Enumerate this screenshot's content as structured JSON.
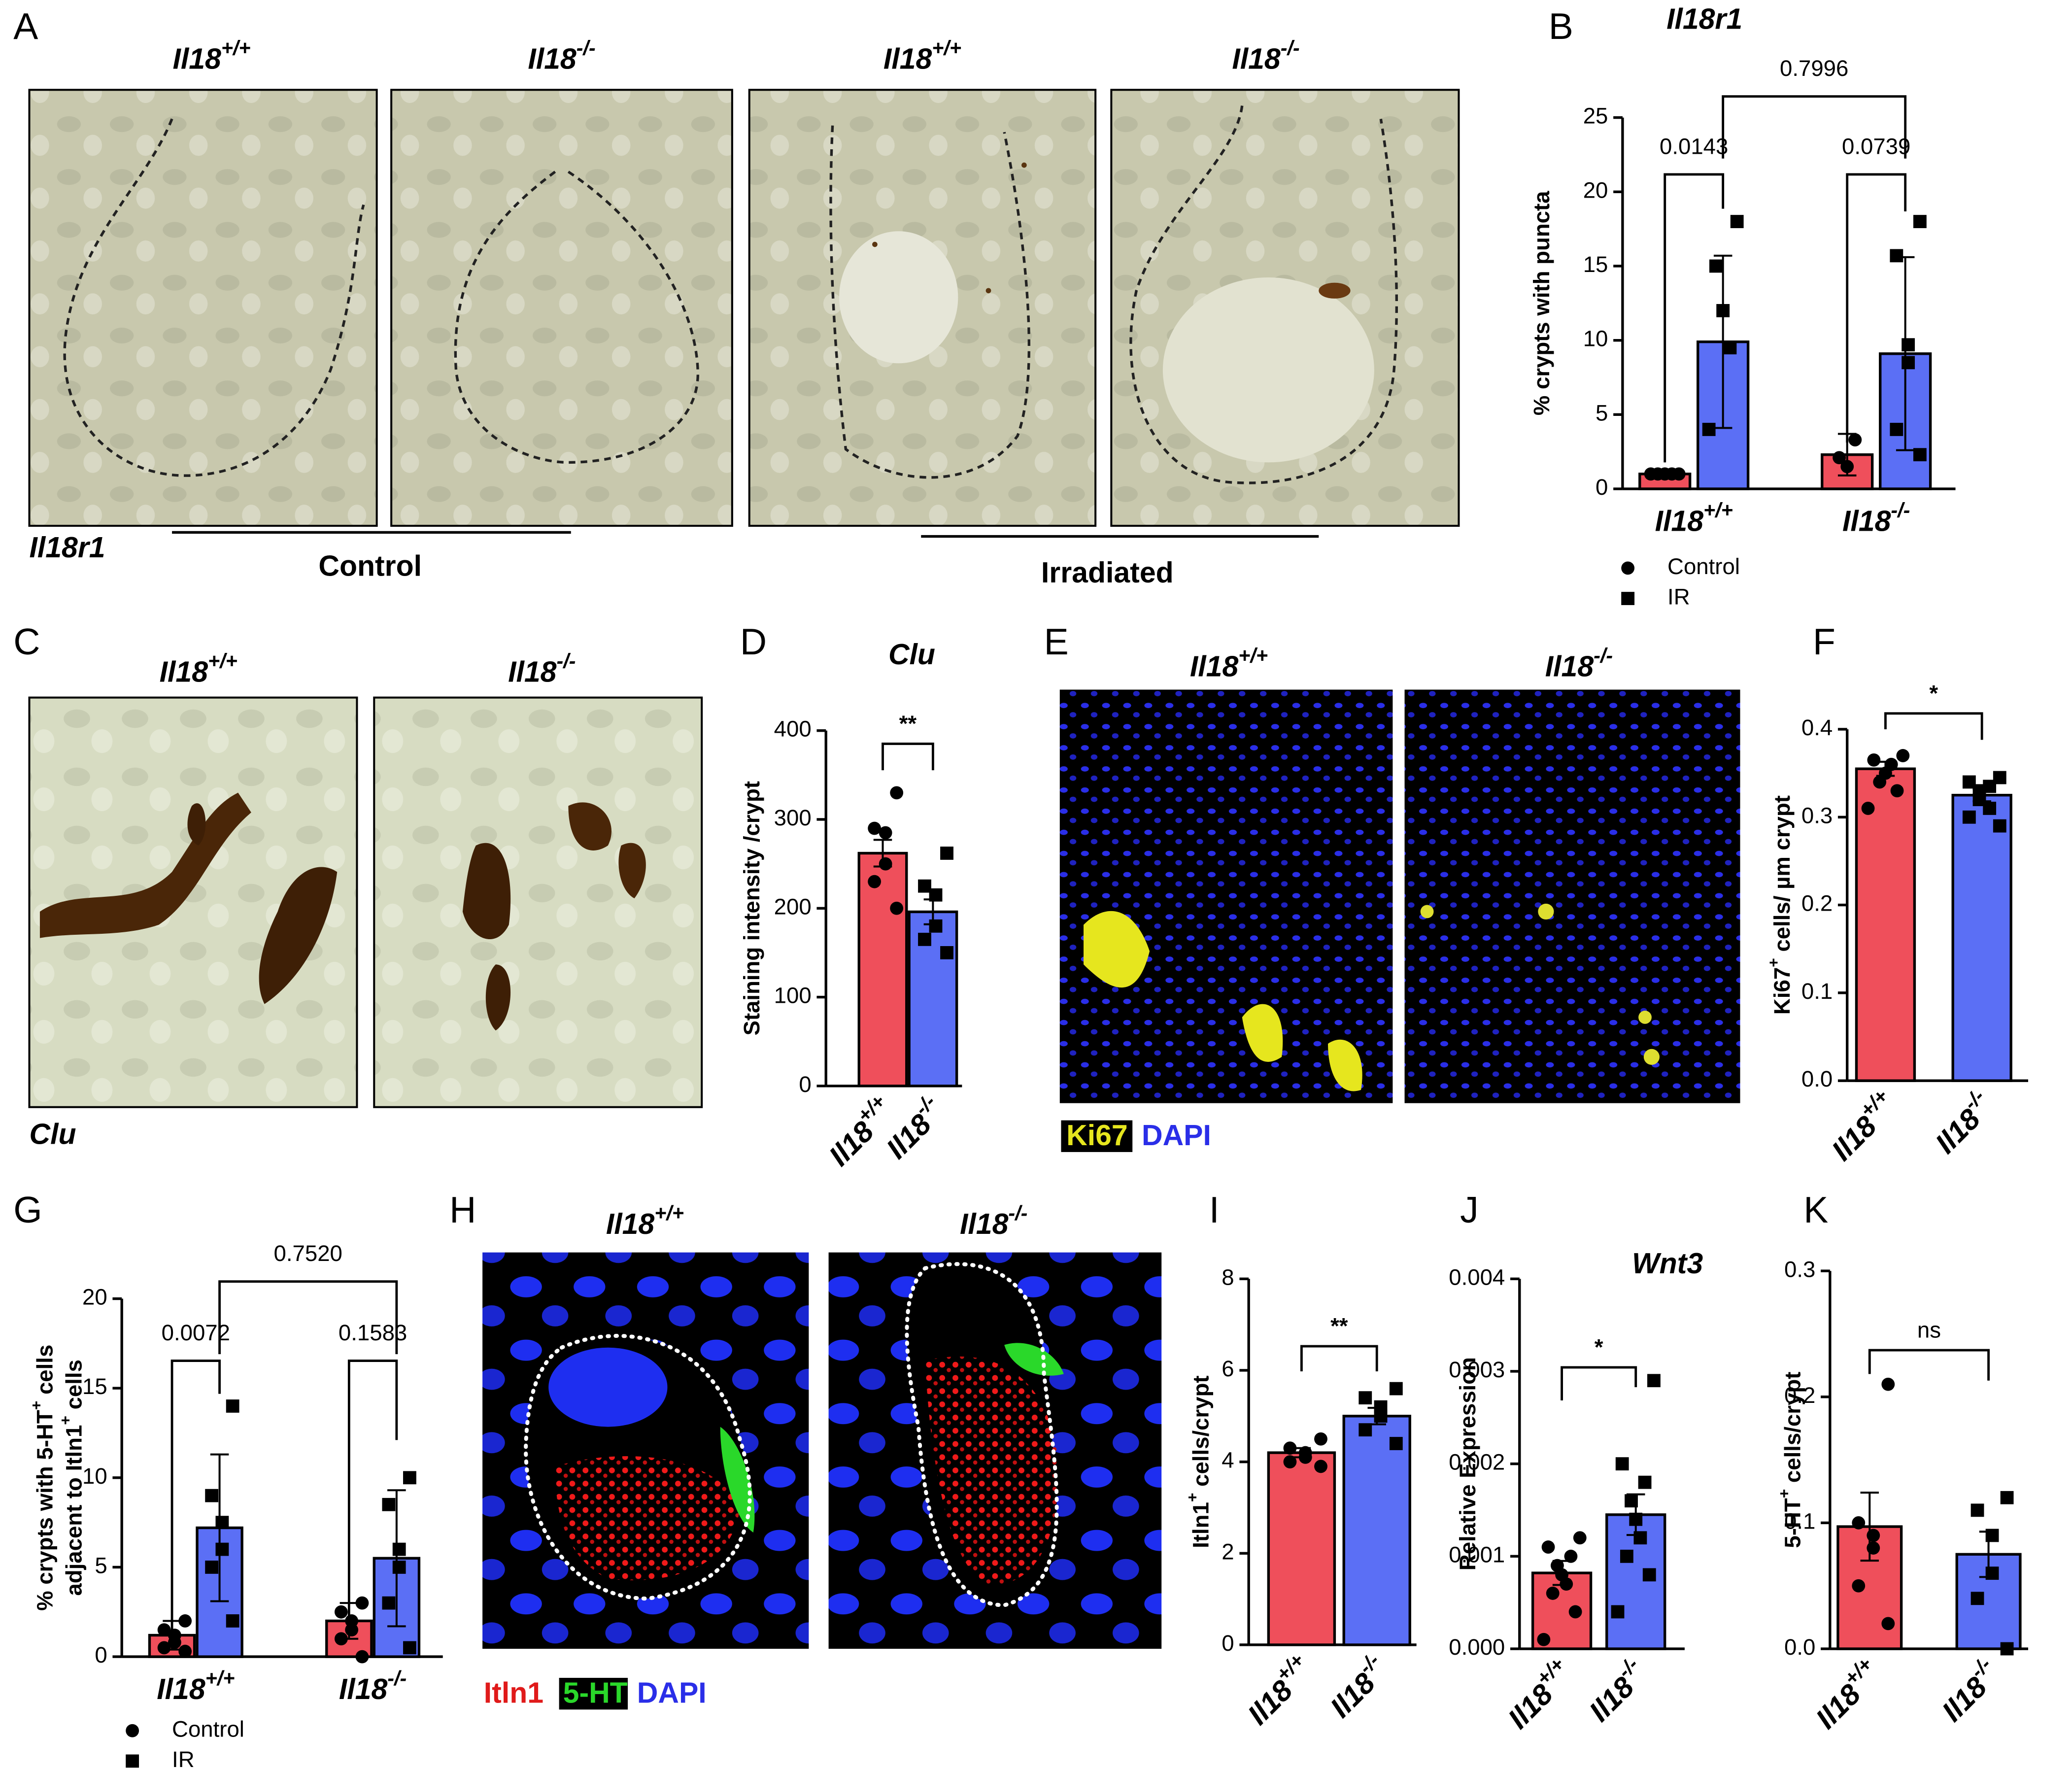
{
  "figure": {
    "panel_letters": [
      "A",
      "B",
      "C",
      "D",
      "E",
      "F",
      "G",
      "H",
      "I",
      "J",
      "K"
    ],
    "A": {
      "titles": [
        "Il18+/+",
        "Il18-/-",
        "Il18+/+",
        "Il18-/-"
      ],
      "stain": "Il18r1",
      "groups": [
        "Control",
        "Irradiated"
      ]
    },
    "C": {
      "titles": [
        "Il18+/+",
        "Il18-/-"
      ],
      "stain": "Clu"
    },
    "E": {
      "titles": [
        "Il18+/+",
        "Il18-/-"
      ],
      "legend": [
        "Ki67",
        "DAPI"
      ]
    },
    "H": {
      "titles": [
        "Il18+/+",
        "Il18-/-"
      ],
      "legend": [
        "Itln1",
        "5-HT",
        "DAPI"
      ]
    }
  },
  "chart_data": [
    {
      "type": "bar",
      "title": "Il18r1",
      "ylabel": "% crypts with puncta",
      "categories": [
        "Il18+/+",
        "Il18-/-"
      ],
      "series": [
        {
          "name": "Control",
          "color": "#ef4f5b",
          "marker": "circle",
          "values": [
            1.0,
            2.3
          ],
          "errors": [
            0.1,
            1.4
          ],
          "points": [
            [
              1,
              1,
              1,
              1,
              1
            ],
            [
              3.3,
              1.5,
              2.1
            ]
          ]
        },
        {
          "name": "IR",
          "color": "#5b6ff5",
          "marker": "square",
          "values": [
            9.9,
            9.1
          ],
          "errors": [
            5.8,
            6.5
          ],
          "points": [
            [
              18,
              15,
              12,
              9.5,
              4
            ],
            [
              18,
              15.7,
              9.7,
              8.5,
              4,
              2.3
            ]
          ]
        }
      ],
      "comparisons": [
        "0.0143",
        "0.0739",
        "0.7996"
      ],
      "ylim": [
        0,
        25
      ],
      "yticks": [
        0,
        5,
        10,
        15,
        20,
        25
      ],
      "legend": "bottom-left"
    },
    {
      "type": "bar",
      "title": "Clu",
      "ylabel": "Staining intensity /crypt",
      "categories": [
        "Il18+/+",
        "Il18-/-"
      ],
      "values": [
        262,
        196
      ],
      "errors": [
        15,
        14
      ],
      "colors": [
        "#ef4f5b",
        "#5b6ff5"
      ],
      "markers": [
        "circle",
        "square"
      ],
      "points": [
        [
          330,
          290,
          285,
          250,
          230,
          200
        ],
        [
          262,
          225,
          215,
          180,
          165,
          150
        ]
      ],
      "significance": "**",
      "ylim": [
        0,
        400
      ],
      "yticks": [
        0,
        100,
        200,
        300,
        400
      ]
    },
    {
      "type": "bar",
      "ylabel": "Ki67+ cells/ µm crypt",
      "categories": [
        "Il18+/+",
        "Il18-/-"
      ],
      "values": [
        0.355,
        0.325
      ],
      "errors": [
        0.008,
        0.007
      ],
      "colors": [
        "#ef4f5b",
        "#5b6ff5"
      ],
      "markers": [
        "circle",
        "square"
      ],
      "points": [
        [
          0.37,
          0.365,
          0.36,
          0.35,
          0.34,
          0.33,
          0.31
        ],
        [
          0.345,
          0.34,
          0.335,
          0.33,
          0.32,
          0.31,
          0.3,
          0.29
        ]
      ],
      "significance": "*",
      "ylim": [
        0,
        0.4
      ],
      "yticks": [
        {
          "value": 0,
          "label": "0.0"
        },
        {
          "value": 0.1,
          "label": "0.1"
        },
        {
          "value": 0.2,
          "label": "0.2"
        },
        {
          "value": 0.3,
          "label": "0.3"
        },
        {
          "value": 0.4,
          "label": "0.4"
        }
      ]
    },
    {
      "type": "bar",
      "ylabel": [
        "% crypts with 5-HT+ cells",
        "adjacent to Itln1+ cells"
      ],
      "categories": [
        "Il18+/+",
        "Il18-/-"
      ],
      "series": [
        {
          "name": "Control",
          "color": "#ef4f5b",
          "marker": "circle",
          "values": [
            1.2,
            2.0
          ],
          "errors": [
            0.8,
            1.0
          ],
          "points": [
            [
              2,
              1.5,
              1.2,
              0.8,
              0.5,
              0.3
            ],
            [
              3,
              2.5,
              2,
              1.5,
              1,
              0
            ]
          ]
        },
        {
          "name": "IR",
          "color": "#5b6ff5",
          "marker": "square",
          "values": [
            7.2,
            5.5
          ],
          "errors": [
            4.1,
            3.8
          ],
          "points": [
            [
              14,
              9,
              7.5,
              6,
              5,
              2
            ],
            [
              10,
              8.5,
              6,
              5,
              3,
              0.5
            ]
          ]
        }
      ],
      "comparisons": [
        "0.0072",
        "0.1583",
        "0.7520"
      ],
      "ylim": [
        0,
        20
      ],
      "yticks": [
        0,
        5,
        10,
        15,
        20
      ],
      "legend": "bottom-left"
    },
    {
      "type": "bar",
      "ylabel": "Itln1+ cells/crypt",
      "categories": [
        "Il18+/+",
        "Il18-/-"
      ],
      "values": [
        4.2,
        5.0
      ],
      "errors": [
        0.1,
        0.18
      ],
      "colors": [
        "#ef4f5b",
        "#5b6ff5"
      ],
      "markers": [
        "circle",
        "square"
      ],
      "points": [
        [
          4.5,
          4.3,
          4.2,
          4.1,
          4.0,
          3.9
        ],
        [
          5.6,
          5.4,
          5.2,
          5.0,
          4.7,
          4.4
        ]
      ],
      "significance": "**",
      "ylim": [
        0,
        8
      ],
      "yticks": [
        0,
        2,
        4,
        6,
        8
      ]
    },
    {
      "type": "bar",
      "title": "Wnt3",
      "ylabel": "Relative Expression",
      "categories": [
        "Il18+/+",
        "Il18-/-"
      ],
      "values": [
        0.00082,
        0.00145
      ],
      "errors": [
        0.00013,
        0.00022
      ],
      "colors": [
        "#ef4f5b",
        "#5b6ff5"
      ],
      "markers": [
        "circle",
        "square"
      ],
      "points": [
        [
          0.0012,
          0.0011,
          0.001,
          0.0009,
          0.0008,
          0.0007,
          0.0006,
          0.0004,
          0.0001
        ],
        [
          0.0029,
          0.002,
          0.0018,
          0.0016,
          0.0014,
          0.0012,
          0.001,
          0.0008,
          0.0004
        ]
      ],
      "significance": "*",
      "ylim": [
        0,
        0.004
      ],
      "yticks": [
        {
          "value": 0,
          "label": "0.000"
        },
        {
          "value": 0.001,
          "label": "0.001"
        },
        {
          "value": 0.002,
          "label": "0.002"
        },
        {
          "value": 0.003,
          "label": "0.003"
        },
        {
          "value": 0.004,
          "label": "0.004"
        }
      ]
    },
    {
      "type": "bar",
      "ylabel": "5-HT+ cells/crypt",
      "categories": [
        "Il18+/+",
        "Il18-/-"
      ],
      "values": [
        0.097,
        0.075
      ],
      "errors": [
        0.027,
        0.018
      ],
      "colors": [
        "#ef4f5b",
        "#5b6ff5"
      ],
      "markers": [
        "circle",
        "square"
      ],
      "points": [
        [
          0.21,
          0.1,
          0.09,
          0.08,
          0.05,
          0.02
        ],
        [
          0.12,
          0.11,
          0.09,
          0.06,
          0.04,
          0.0
        ]
      ],
      "significance": "ns",
      "ylim": [
        0,
        0.3
      ],
      "yticks": [
        {
          "value": 0,
          "label": "0.0"
        },
        {
          "value": 0.1,
          "label": "0.1"
        },
        {
          "value": 0.2,
          "label": "0.2"
        },
        {
          "value": 0.3,
          "label": "0.3"
        }
      ]
    }
  ]
}
